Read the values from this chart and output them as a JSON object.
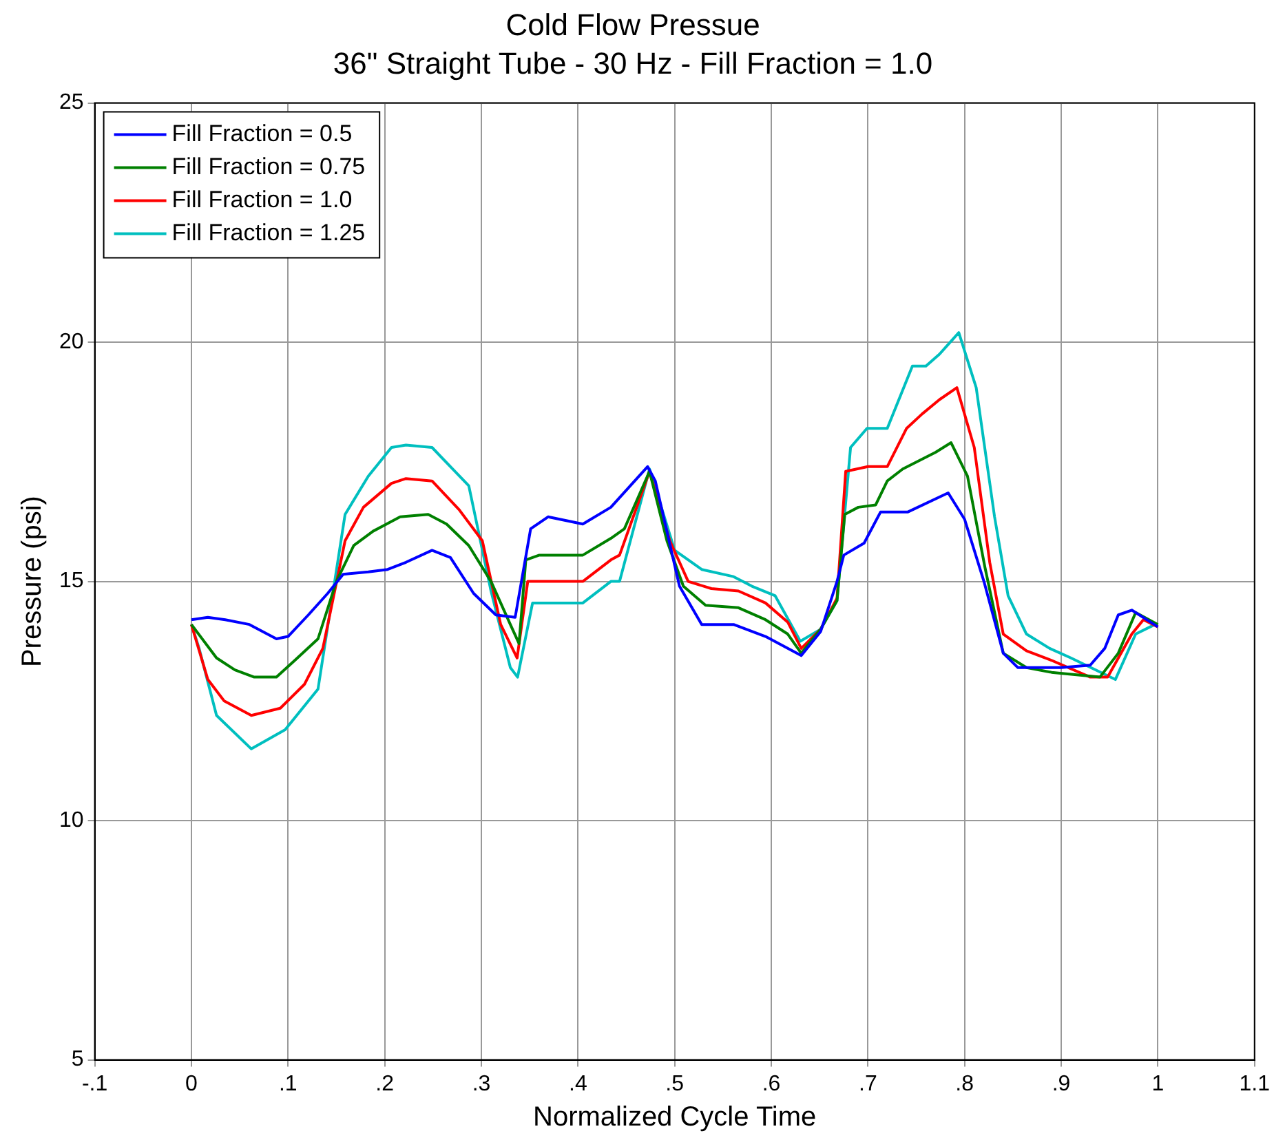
{
  "chart_data": {
    "type": "line",
    "title": "Cold Flow Pressue",
    "subtitle": "36\" Straight Tube - 30 Hz - Fill Fraction = 1.0",
    "xlabel": "Normalized Cycle Time",
    "ylabel": "Pressure (psi)",
    "xlim": [
      -0.1,
      1.1
    ],
    "xticks": [
      {
        "value": -0.1,
        "label": "-.1"
      },
      0,
      {
        "value": 0.1,
        "label": ".1"
      },
      {
        "value": 0.2,
        "label": ".2"
      },
      {
        "value": 0.3,
        "label": ".3"
      },
      {
        "value": 0.4,
        "label": ".4"
      },
      {
        "value": 0.5,
        "label": ".5"
      },
      {
        "value": 0.6,
        "label": ".6"
      },
      {
        "value": 0.7,
        "label": ".7"
      },
      {
        "value": 0.8,
        "label": ".8"
      },
      {
        "value": 0.9,
        "label": ".9"
      },
      1,
      1.1
    ],
    "ylim": [
      5,
      25
    ],
    "yticks": [
      5,
      10,
      15,
      20,
      25
    ],
    "grid": true,
    "legend": "top left",
    "marker": "none",
    "line_style": "solid",
    "series": [
      {
        "name": "Fill Fraction = 0.5",
        "color": "#0000ff",
        "x": [
          0,
          0.017,
          0.035,
          0.06,
          0.088,
          0.1,
          0.121,
          0.141,
          0.157,
          0.183,
          0.203,
          0.222,
          0.249,
          0.268,
          0.292,
          0.315,
          0.335,
          0.351,
          0.369,
          0.405,
          0.434,
          0.472,
          0.48,
          0.505,
          0.528,
          0.561,
          0.594,
          0.631,
          0.651,
          0.668,
          0.675,
          0.696,
          0.713,
          0.741,
          0.783,
          0.8,
          0.82,
          0.84,
          0.855,
          0.87,
          0.9,
          0.93,
          0.945,
          0.959,
          0.973,
          1.0
        ],
        "values": [
          14.2,
          14.25,
          14.2,
          14.1,
          13.8,
          13.85,
          14.3,
          14.75,
          15.15,
          15.2,
          15.25,
          15.4,
          15.65,
          15.5,
          14.75,
          14.3,
          14.25,
          16.1,
          16.35,
          16.2,
          16.55,
          17.4,
          17.1,
          14.9,
          14.1,
          14.1,
          13.85,
          13.45,
          13.95,
          15.0,
          15.55,
          15.8,
          16.45,
          16.45,
          16.85,
          16.3,
          15.0,
          13.5,
          13.2,
          13.2,
          13.2,
          13.25,
          13.6,
          14.3,
          14.4,
          14.05
        ]
      },
      {
        "name": "Fill Fraction = 0.75",
        "color": "#008000",
        "x": [
          0,
          0.026,
          0.045,
          0.065,
          0.088,
          0.107,
          0.131,
          0.15,
          0.168,
          0.188,
          0.216,
          0.245,
          0.264,
          0.287,
          0.31,
          0.33,
          0.339,
          0.346,
          0.36,
          0.405,
          0.434,
          0.448,
          0.474,
          0.492,
          0.509,
          0.532,
          0.566,
          0.594,
          0.617,
          0.631,
          0.651,
          0.668,
          0.676,
          0.69,
          0.708,
          0.72,
          0.736,
          0.77,
          0.786,
          0.803,
          0.821,
          0.84,
          0.864,
          0.89,
          0.94,
          0.959,
          0.977,
          1.0
        ],
        "values": [
          14.1,
          13.4,
          13.15,
          13.0,
          13.0,
          13.35,
          13.8,
          15.0,
          15.75,
          16.05,
          16.35,
          16.4,
          16.2,
          15.75,
          15.0,
          14.1,
          13.7,
          15.45,
          15.55,
          15.55,
          15.9,
          16.1,
          17.3,
          15.85,
          14.9,
          14.5,
          14.45,
          14.2,
          13.9,
          13.5,
          14.0,
          14.6,
          16.4,
          16.55,
          16.6,
          17.1,
          17.35,
          17.7,
          17.9,
          17.2,
          15.3,
          13.5,
          13.2,
          13.1,
          13.0,
          13.5,
          14.35,
          14.1
        ]
      },
      {
        "name": "Fill Fraction = 1.0",
        "color": "#ff0000",
        "x": [
          0,
          0.017,
          0.034,
          0.062,
          0.092,
          0.117,
          0.136,
          0.159,
          0.178,
          0.207,
          0.222,
          0.249,
          0.277,
          0.301,
          0.32,
          0.337,
          0.348,
          0.405,
          0.434,
          0.443,
          0.474,
          0.495,
          0.514,
          0.538,
          0.566,
          0.594,
          0.617,
          0.631,
          0.651,
          0.668,
          0.677,
          0.7,
          0.72,
          0.74,
          0.756,
          0.774,
          0.792,
          0.81,
          0.826,
          0.84,
          0.864,
          0.89,
          0.93,
          0.948,
          0.973,
          0.985,
          1.0
        ],
        "values": [
          14.1,
          12.95,
          12.5,
          12.2,
          12.35,
          12.85,
          13.6,
          15.85,
          16.55,
          17.05,
          17.15,
          17.1,
          16.5,
          15.85,
          14.1,
          13.4,
          15.0,
          15.0,
          15.45,
          15.55,
          17.3,
          15.85,
          15.0,
          14.85,
          14.8,
          14.55,
          14.15,
          13.6,
          14.0,
          14.65,
          17.3,
          17.4,
          17.4,
          18.2,
          18.5,
          18.8,
          19.05,
          17.8,
          15.4,
          13.9,
          13.55,
          13.35,
          13.0,
          13.0,
          13.9,
          14.2,
          14.05
        ]
      },
      {
        "name": "Fill Fraction = 1.25",
        "color": "#00bfbf",
        "x": [
          0,
          0.008,
          0.026,
          0.062,
          0.097,
          0.131,
          0.159,
          0.183,
          0.207,
          0.222,
          0.249,
          0.268,
          0.287,
          0.31,
          0.33,
          0.3375,
          0.353,
          0.405,
          0.434,
          0.443,
          0.474,
          0.5,
          0.528,
          0.561,
          0.58,
          0.604,
          0.63,
          0.651,
          0.668,
          0.682,
          0.699,
          0.72,
          0.746,
          0.76,
          0.774,
          0.794,
          0.812,
          0.831,
          0.845,
          0.864,
          0.888,
          0.91,
          0.956,
          0.977,
          0.997
        ],
        "values": [
          14.1,
          13.6,
          12.2,
          11.5,
          11.9,
          12.75,
          16.4,
          17.2,
          17.8,
          17.85,
          17.8,
          17.4,
          17.0,
          14.8,
          13.2,
          13.0,
          14.55,
          14.55,
          15.0,
          15.0,
          17.35,
          15.65,
          15.25,
          15.1,
          14.9,
          14.7,
          13.75,
          14.0,
          14.6,
          17.8,
          18.2,
          18.2,
          19.5,
          19.5,
          19.75,
          20.2,
          19.05,
          16.35,
          14.7,
          13.9,
          13.6,
          13.4,
          12.95,
          13.9,
          14.1
        ]
      }
    ]
  }
}
